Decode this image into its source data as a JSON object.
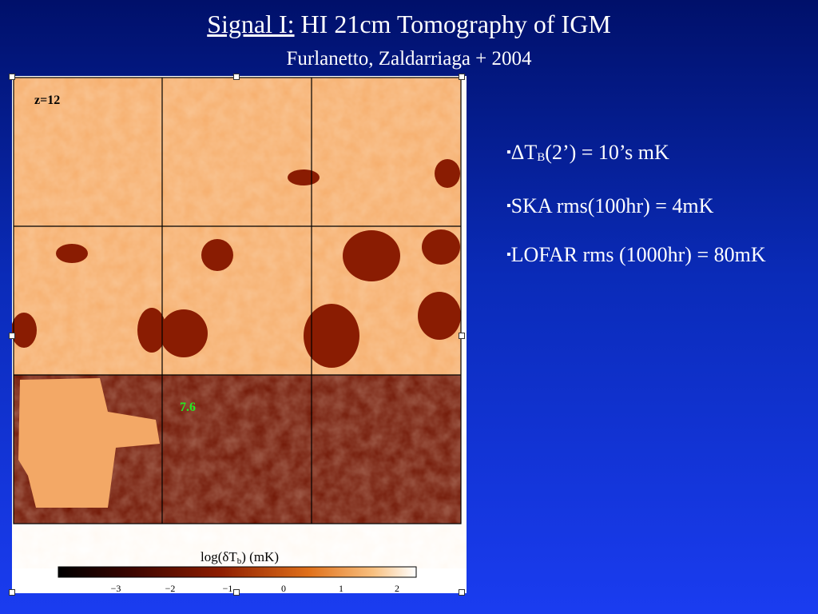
{
  "header": {
    "title_underlined": "Signal I:",
    "title_rest": "HI 21cm Tomography of IGM",
    "subtitle": "Furlanetto, Zaldarriaga  + 2004"
  },
  "figure": {
    "panel_labels": [
      "z=12",
      "7.6"
    ],
    "colorbar": {
      "label": "log(δT",
      "label_sub": "b",
      "label_end": ")  (mK)",
      "ticks": [
        "−3",
        "−2",
        "−1",
        "0",
        "1",
        "2"
      ]
    }
  },
  "bullets": [
    {
      "text": "ΔT",
      "sub": "B",
      "rest": "(2’) = 10’s mK"
    },
    {
      "text": "SKA rms(100hr) = 4mK"
    },
    {
      "text": "LOFAR rms (1000hr) = 80mK"
    }
  ]
}
